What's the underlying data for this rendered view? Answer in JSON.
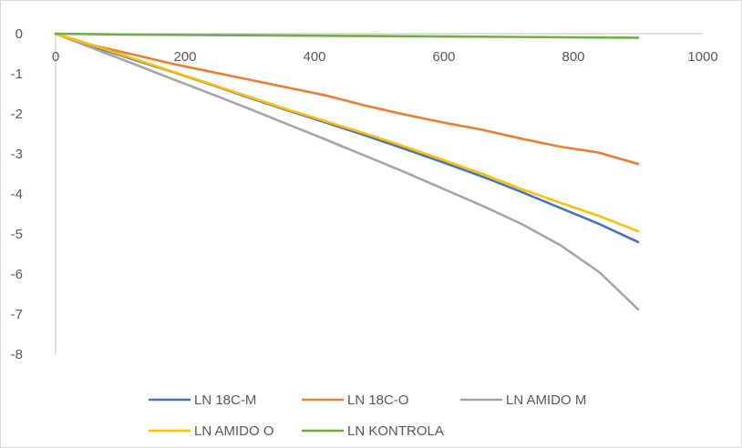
{
  "chart_data": {
    "type": "line",
    "title": "",
    "xlabel": "",
    "ylabel": "",
    "xlim": [
      0,
      1000
    ],
    "ylim": [
      -8,
      0
    ],
    "x_ticks": [
      0,
      200,
      400,
      600,
      800,
      1000
    ],
    "y_ticks": [
      0,
      -1,
      -2,
      -3,
      -4,
      -5,
      -6,
      -7,
      -8
    ],
    "x_tick_labels": [
      "0",
      "200",
      "400",
      "600",
      "800",
      "1000"
    ],
    "y_tick_labels": [
      "0",
      "-1",
      "-2",
      "-3",
      "-4",
      "-5",
      "-6",
      "-7",
      "-8"
    ],
    "grid": false,
    "legend_position": "bottom",
    "series": [
      {
        "name": "LN 18C-M",
        "color": "#4472C4",
        "x": [
          0,
          60,
          120,
          180,
          240,
          300,
          360,
          420,
          480,
          540,
          600,
          660,
          720,
          780,
          840,
          900
        ],
        "y": [
          0,
          -0.33,
          -0.64,
          -0.95,
          -1.27,
          -1.6,
          -1.92,
          -2.23,
          -2.55,
          -2.88,
          -3.22,
          -3.57,
          -3.95,
          -4.35,
          -4.75,
          -5.2
        ]
      },
      {
        "name": "LN 18C-O",
        "color": "#ED7D31",
        "x": [
          0,
          60,
          120,
          180,
          240,
          300,
          360,
          420,
          480,
          540,
          600,
          660,
          720,
          780,
          840,
          900
        ],
        "y": [
          0,
          -0.3,
          -0.52,
          -0.75,
          -0.95,
          -1.15,
          -1.35,
          -1.55,
          -1.8,
          -2.02,
          -2.22,
          -2.4,
          -2.62,
          -2.82,
          -2.97,
          -3.25
        ]
      },
      {
        "name": "LN AMIDO M",
        "color": "#A5A5A5",
        "x": [
          0,
          60,
          120,
          180,
          240,
          300,
          360,
          420,
          480,
          540,
          600,
          660,
          720,
          780,
          840,
          900
        ],
        "y": [
          0,
          -0.38,
          -0.75,
          -1.13,
          -1.5,
          -1.88,
          -2.27,
          -2.66,
          -3.06,
          -3.46,
          -3.88,
          -4.3,
          -4.75,
          -5.28,
          -5.95,
          -6.88
        ]
      },
      {
        "name": "LN AMIDO O",
        "color": "#FFC000",
        "x": [
          0,
          60,
          120,
          180,
          240,
          300,
          360,
          420,
          480,
          540,
          600,
          660,
          720,
          780,
          840,
          900
        ],
        "y": [
          0,
          -0.3,
          -0.62,
          -0.94,
          -1.26,
          -1.58,
          -1.9,
          -2.2,
          -2.5,
          -2.82,
          -3.16,
          -3.5,
          -3.88,
          -4.22,
          -4.55,
          -4.93
        ]
      },
      {
        "name": "LN KONTROLA",
        "color": "#70AD47",
        "x": [
          0,
          100,
          200,
          300,
          400,
          500,
          600,
          700,
          800,
          900
        ],
        "y": [
          0,
          -0.02,
          -0.03,
          -0.04,
          -0.05,
          -0.06,
          -0.07,
          -0.08,
          -0.09,
          -0.1
        ]
      }
    ]
  }
}
